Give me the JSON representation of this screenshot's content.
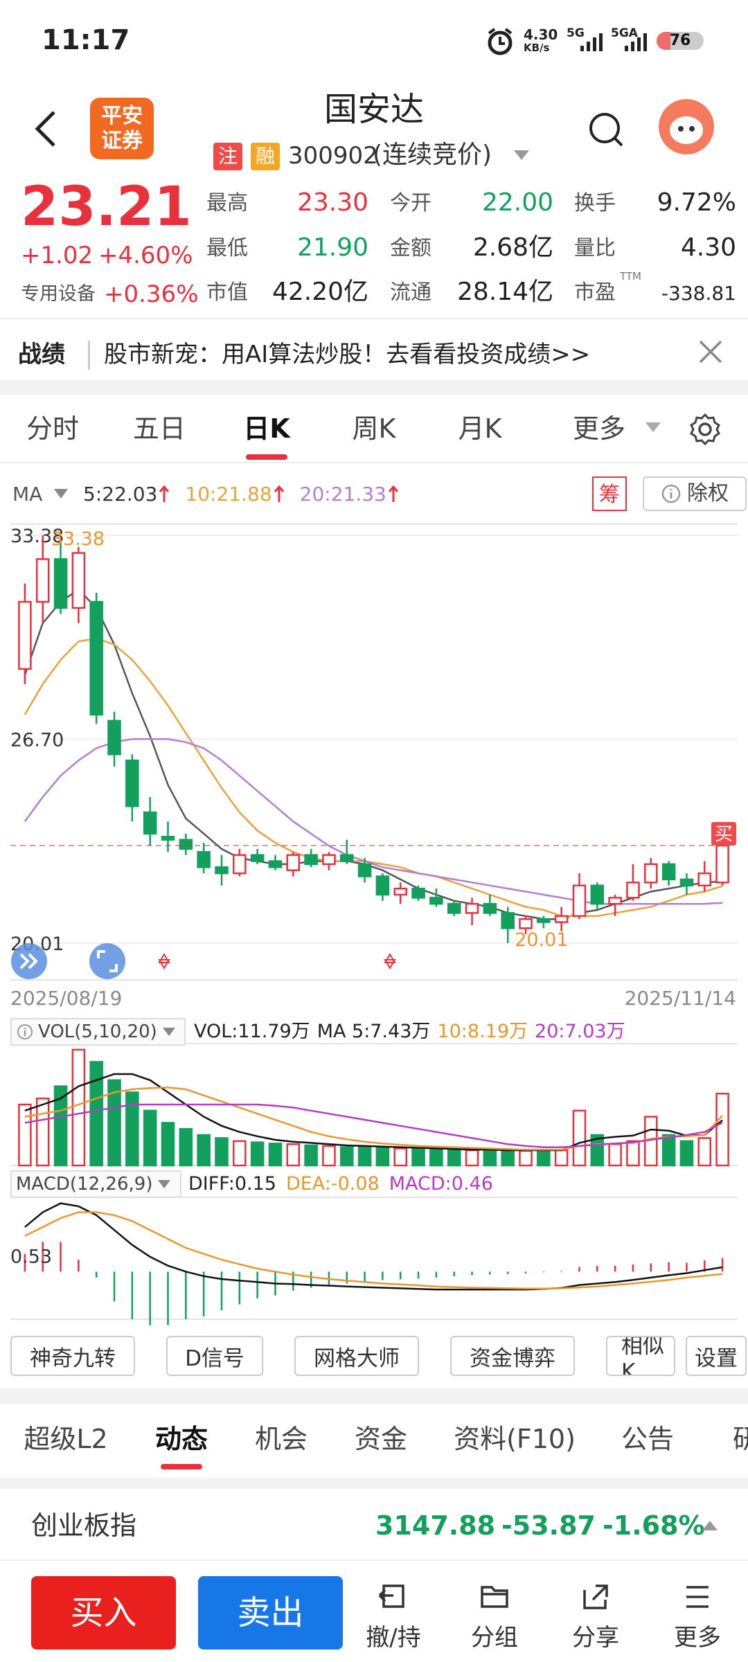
{
  "status_bar": {
    "time": "11:17",
    "speed": "4.30",
    "speed_unit": "KB/s",
    "net1": "5G",
    "net2": "5GA",
    "battery": "76"
  },
  "header": {
    "logo": [
      "平安",
      "证券"
    ],
    "title": "国安达",
    "tags": [
      "注",
      "融"
    ],
    "code": "300902",
    "state": "(连续竞价)"
  },
  "quote": {
    "price": "23.21",
    "change": "+1.02",
    "change_pct": "+4.60%",
    "sector": "专用设备",
    "sector_pct": "+0.36%",
    "stats": [
      [
        {
          "label": "最高",
          "value": "23.30",
          "tone": "up"
        },
        {
          "label": "今开",
          "value": "22.00",
          "tone": "down"
        },
        {
          "label": "换手",
          "value": "9.72%",
          "tone": "flat"
        }
      ],
      [
        {
          "label": "最低",
          "value": "21.90",
          "tone": "down"
        },
        {
          "label": "金额",
          "value": "2.68亿",
          "tone": "flat"
        },
        {
          "label": "量比",
          "value": "4.30",
          "tone": "flat"
        }
      ],
      [
        {
          "label": "市值",
          "value": "42.20亿",
          "tone": "flat"
        },
        {
          "label": "流通",
          "value": "28.14亿",
          "tone": "flat"
        },
        {
          "label": "市盈",
          "sup": "TTM",
          "value": "-338.81",
          "tone": "flat"
        }
      ]
    ]
  },
  "banner": {
    "label": "战绩",
    "text": "股市新宠：用AI算法炒股！去看看投资成绩>>"
  },
  "chart_tabs": [
    "分时",
    "五日",
    "日K",
    "周K",
    "月K",
    "更多"
  ],
  "chart_tab_selected": 2,
  "chart_data": {
    "type": "candlestick",
    "up_color": "#e8313c",
    "down_color": "#12a05c",
    "ma_label": "MA",
    "ma": [
      {
        "legend": "5:22.03",
        "color": "#555555",
        "values": [
          28.8,
          30.5,
          31.2,
          31.6,
          31.0,
          29.8,
          28.2,
          26.8,
          25.2,
          24.1,
          23.6,
          23.1,
          22.8,
          22.7,
          22.6,
          22.6,
          22.7,
          22.7,
          22.7,
          22.6,
          22.4,
          22.1,
          21.8,
          21.6,
          21.4,
          21.3,
          21.2,
          21.0,
          20.9,
          20.8,
          20.8,
          21.0,
          21.1,
          21.3,
          21.5,
          21.7,
          21.8,
          21.9,
          22.0,
          22.03
        ]
      },
      {
        "legend": "10:21.88",
        "color": "#e8a23a",
        "values": [
          27.5,
          28.5,
          29.3,
          29.9,
          30.0,
          29.8,
          29.3,
          28.6,
          27.8,
          26.9,
          26.0,
          25.1,
          24.3,
          23.7,
          23.3,
          23.0,
          22.8,
          22.7,
          22.7,
          22.7,
          22.6,
          22.5,
          22.3,
          22.2,
          22.0,
          21.8,
          21.6,
          21.4,
          21.2,
          21.1,
          20.9,
          20.9,
          20.9,
          21.0,
          21.1,
          21.2,
          21.4,
          21.6,
          21.7,
          21.88
        ]
      },
      {
        "legend": "20:21.33",
        "color": "#b27fd0",
        "values": [
          24.0,
          24.8,
          25.5,
          26.0,
          26.4,
          26.6,
          26.7,
          26.7,
          26.7,
          26.6,
          26.4,
          26.0,
          25.5,
          25.0,
          24.5,
          24.0,
          23.6,
          23.2,
          22.9,
          22.7,
          22.5,
          22.4,
          22.3,
          22.2,
          22.1,
          22.0,
          21.9,
          21.8,
          21.7,
          21.6,
          21.5,
          21.4,
          21.3,
          21.3,
          21.3,
          21.3,
          21.3,
          21.3,
          21.3,
          21.33
        ]
      }
    ],
    "candles": [
      [
        29.0,
        31.8,
        28.5,
        31.2
      ],
      [
        31.2,
        33.38,
        30.5,
        32.6
      ],
      [
        32.6,
        33.2,
        30.8,
        31.0
      ],
      [
        31.0,
        33.0,
        30.5,
        32.8
      ],
      [
        31.2,
        31.5,
        27.2,
        27.5
      ],
      [
        27.3,
        27.6,
        25.8,
        26.2
      ],
      [
        26.0,
        26.2,
        24.0,
        24.5
      ],
      [
        24.3,
        24.8,
        23.2,
        23.6
      ],
      [
        23.5,
        24.0,
        23.0,
        23.4
      ],
      [
        23.4,
        23.6,
        22.9,
        23.1
      ],
      [
        23.0,
        23.3,
        22.3,
        22.5
      ],
      [
        22.5,
        22.9,
        21.9,
        22.3
      ],
      [
        22.3,
        23.1,
        22.2,
        22.9
      ],
      [
        22.9,
        23.1,
        22.6,
        22.7
      ],
      [
        22.7,
        22.9,
        22.4,
        22.5
      ],
      [
        22.4,
        23.0,
        22.2,
        22.9
      ],
      [
        22.9,
        23.1,
        22.5,
        22.6
      ],
      [
        22.6,
        23.0,
        22.4,
        22.9
      ],
      [
        22.9,
        23.4,
        22.6,
        22.7
      ],
      [
        22.6,
        22.8,
        22.0,
        22.2
      ],
      [
        22.2,
        22.3,
        21.4,
        21.6
      ],
      [
        21.6,
        22.0,
        21.3,
        21.8
      ],
      [
        21.8,
        21.9,
        21.4,
        21.5
      ],
      [
        21.5,
        21.8,
        21.2,
        21.3
      ],
      [
        21.3,
        21.4,
        20.9,
        21.0
      ],
      [
        21.0,
        21.5,
        20.6,
        21.3
      ],
      [
        21.3,
        21.6,
        20.9,
        21.0
      ],
      [
        21.0,
        21.2,
        20.01,
        20.5
      ],
      [
        20.5,
        20.9,
        20.3,
        20.8
      ],
      [
        20.8,
        20.9,
        20.5,
        20.7
      ],
      [
        20.7,
        21.2,
        20.4,
        20.9
      ],
      [
        20.9,
        22.3,
        20.8,
        21.9
      ],
      [
        21.9,
        22.0,
        21.1,
        21.3
      ],
      [
        21.3,
        21.6,
        20.9,
        21.5
      ],
      [
        21.5,
        22.6,
        21.4,
        22.0
      ],
      [
        22.0,
        22.8,
        21.8,
        22.6
      ],
      [
        22.6,
        22.7,
        21.9,
        22.1
      ],
      [
        22.1,
        22.3,
        21.6,
        21.9
      ],
      [
        21.9,
        22.7,
        21.7,
        22.3
      ],
      [
        22.0,
        23.3,
        21.9,
        23.21
      ]
    ],
    "max_index": 1,
    "min_index": 27,
    "ylim": [
      20.01,
      33.38
    ],
    "yticks": [
      20.01,
      {
        "value": 26.7,
        "label": "26.70"
      },
      33.38
    ],
    "date_labels": [
      "2025/08/19",
      "2025/11/14"
    ],
    "buy_marker": "买",
    "chip_button": "筹",
    "adjust_button": "除权",
    "volume": {
      "label": "VOL(5,10,20)",
      "legend": [
        {
          "text": "VOL:11.79万",
          "color": "#222222"
        },
        {
          "text": "MA 5:7.43万",
          "color": "#222222"
        },
        {
          "text": "10:8.19万",
          "color": "#e8962e"
        },
        {
          "text": "20:7.03万",
          "color": "#b53cc4"
        }
      ],
      "values": [
        10,
        11,
        13,
        19,
        17,
        14,
        12,
        9,
        7,
        6,
        5,
        4.5,
        4,
        3.8,
        3.6,
        3.5,
        3.3,
        3.2,
        3.0,
        3.0,
        2.9,
        2.8,
        2.7,
        2.6,
        2.6,
        2.5,
        2.5,
        2.5,
        2.4,
        2.4,
        2.5,
        9,
        5,
        3.5,
        4,
        8,
        5,
        4,
        4.5,
        11.79
      ],
      "ylim": [
        0,
        20
      ],
      "ma": [
        {
          "color": "#111111",
          "values": [
            9,
            10,
            11,
            13,
            14,
            15,
            15,
            14,
            12,
            10,
            8,
            6.5,
            5.5,
            4.8,
            4.2,
            3.9,
            3.7,
            3.5,
            3.3,
            3.2,
            3.1,
            3.0,
            2.9,
            2.8,
            2.7,
            2.6,
            2.6,
            2.5,
            2.5,
            2.5,
            2.5,
            3.7,
            4.4,
            4.7,
            4.9,
            5.9,
            5.7,
            4.9,
            5.0,
            7.43
          ]
        },
        {
          "color": "#e8962e",
          "values": [
            8,
            8.5,
            9,
            10,
            11,
            12,
            12.5,
            12.7,
            12.8,
            12.5,
            11.5,
            10.5,
            9.5,
            8.5,
            7.5,
            6.5,
            5.5,
            4.8,
            4.3,
            3.9,
            3.6,
            3.4,
            3.2,
            3.1,
            3.0,
            2.9,
            2.8,
            2.7,
            2.6,
            2.6,
            2.6,
            3.2,
            3.5,
            3.6,
            3.7,
            4.4,
            4.7,
            4.8,
            5.0,
            8.19
          ]
        },
        {
          "color": "#b53cc4",
          "values": [
            7,
            7.5,
            8,
            8.5,
            9,
            9.5,
            10,
            10,
            10,
            10,
            10,
            10,
            10,
            10,
            9.8,
            9.5,
            9,
            8.5,
            8,
            7.5,
            7,
            6.5,
            6,
            5.5,
            5,
            4.5,
            4,
            3.5,
            3.2,
            3.0,
            3.0,
            3.2,
            3.4,
            3.6,
            3.8,
            4.2,
            4.6,
            5,
            5.5,
            7.03
          ]
        }
      ]
    },
    "macd": {
      "label": "MACD(12,26,9)",
      "legend": [
        {
          "text": "DIFF:0.15",
          "color": "#222222"
        },
        {
          "text": "DEA:-0.08",
          "color": "#e8962e"
        },
        {
          "text": "MACD:0.46",
          "color": "#b53cc4"
        }
      ],
      "diff": [
        1.5,
        2.0,
        2.3,
        2.2,
        1.9,
        1.4,
        0.9,
        0.5,
        0.2,
        0.0,
        -0.15,
        -0.25,
        -0.3,
        -0.35,
        -0.4,
        -0.42,
        -0.45,
        -0.47,
        -0.5,
        -0.52,
        -0.54,
        -0.56,
        -0.58,
        -0.6,
        -0.6,
        -0.6,
        -0.6,
        -0.6,
        -0.6,
        -0.58,
        -0.55,
        -0.45,
        -0.4,
        -0.35,
        -0.28,
        -0.2,
        -0.12,
        -0.05,
        0.05,
        0.15
      ],
      "dea": [
        1.2,
        1.5,
        1.8,
        2.0,
        2.0,
        1.9,
        1.7,
        1.4,
        1.1,
        0.8,
        0.6,
        0.4,
        0.25,
        0.1,
        0.0,
        -0.1,
        -0.18,
        -0.25,
        -0.3,
        -0.35,
        -0.4,
        -0.43,
        -0.46,
        -0.5,
        -0.52,
        -0.54,
        -0.55,
        -0.56,
        -0.57,
        -0.57,
        -0.56,
        -0.53,
        -0.5,
        -0.45,
        -0.4,
        -0.34,
        -0.28,
        -0.2,
        -0.14,
        -0.08
      ],
      "hist": [
        0.6,
        1.0,
        1.0,
        0.4,
        -0.2,
        -1.0,
        -1.6,
        -1.8,
        -1.8,
        -1.6,
        -1.5,
        -1.3,
        -1.1,
        -0.9,
        -0.8,
        -0.64,
        -0.54,
        -0.44,
        -0.4,
        -0.34,
        -0.28,
        -0.26,
        -0.24,
        -0.2,
        -0.16,
        -0.12,
        -0.1,
        -0.08,
        -0.06,
        -0.02,
        0.02,
        0.16,
        0.2,
        0.2,
        0.24,
        0.28,
        0.32,
        0.3,
        0.38,
        0.46
      ],
      "diff_color": "#111111",
      "dea_color": "#e8962e",
      "ylim": [
        -1.6,
        2.5
      ],
      "yticks": [
        0.53
      ]
    }
  },
  "tools": [
    "神奇九转",
    "D信号",
    "网格大师",
    "资金博弈",
    "相似K",
    "设置"
  ],
  "bottom_tabs": [
    "超级L2",
    "动态",
    "机会",
    "资金",
    "资料(F10)",
    "公告",
    "研报"
  ],
  "bottom_tab_selected": 1,
  "index": {
    "name": "创业板指",
    "value": "3147.88",
    "change": "-53.87",
    "change_pct": "-1.68%"
  },
  "actions": {
    "buy": "买入",
    "sell": "卖出",
    "tools": [
      "撤/持",
      "分组",
      "分享",
      "更多"
    ]
  }
}
